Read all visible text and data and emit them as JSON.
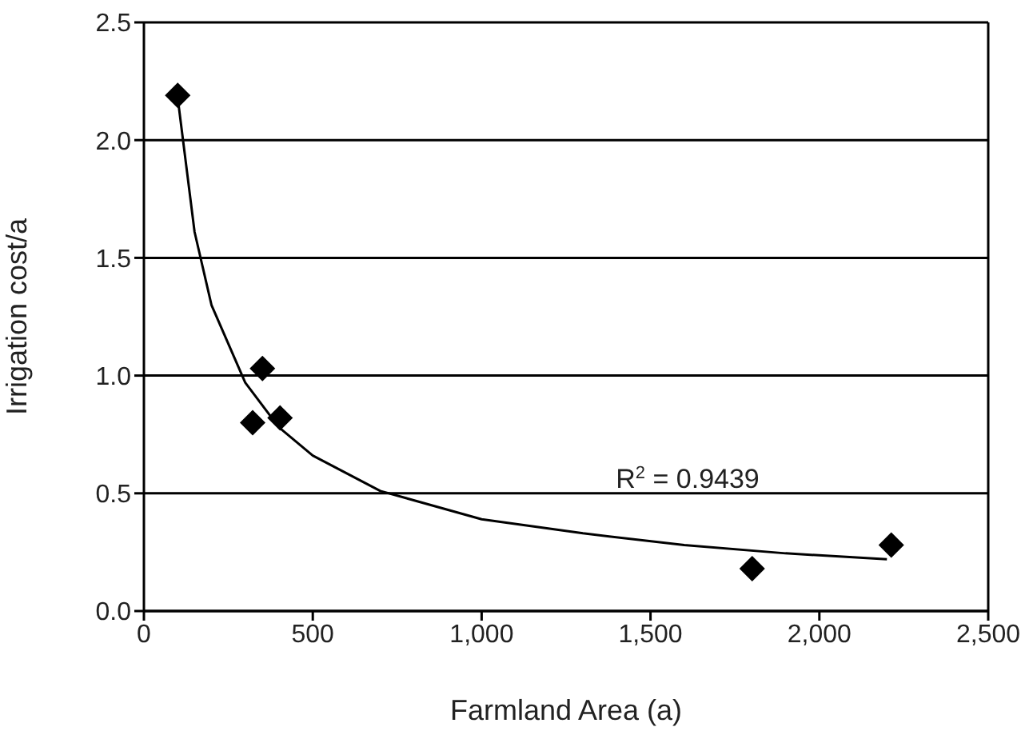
{
  "chart_data": {
    "type": "scatter",
    "xlabel": "Farmland Area (a)",
    "ylabel": "Irrigation cost/a",
    "series": [
      {
        "color": "#000000",
        "marker": "diamond",
        "x": [
          100,
          322,
          351,
          403,
          1801,
          2213
        ],
        "values": [
          2.19,
          0.8,
          1.03,
          0.82,
          0.18,
          0.28
        ]
      },
      {
        "type": "line",
        "color": "#000000",
        "marker": "none",
        "x": [
          100,
          150,
          200,
          300,
          400,
          500,
          700,
          1000,
          1300,
          1600,
          1900,
          2200
        ],
        "values": [
          2.18,
          1.61,
          1.3,
          0.97,
          0.78,
          0.66,
          0.51,
          0.39,
          0.33,
          0.28,
          0.245,
          0.22
        ]
      }
    ],
    "xlim": [
      0,
      2500
    ],
    "xticks": [
      0,
      500,
      {
        "value": 1000,
        "label": "1,000"
      },
      {
        "value": 1500,
        "label": "1,500"
      },
      {
        "value": 2000,
        "label": "2,000"
      },
      {
        "value": 2500,
        "label": "2,500"
      }
    ],
    "ylim": [
      0,
      2.5
    ],
    "yticks": [
      {
        "value": 0,
        "label": "0.0"
      },
      0.5,
      {
        "value": 1,
        "label": "1.0"
      },
      1.5,
      {
        "value": 2,
        "label": "2.0"
      },
      2.5
    ],
    "grid": "y",
    "annotations": [
      "R$^{2}$ = 0.9439"
    ]
  }
}
